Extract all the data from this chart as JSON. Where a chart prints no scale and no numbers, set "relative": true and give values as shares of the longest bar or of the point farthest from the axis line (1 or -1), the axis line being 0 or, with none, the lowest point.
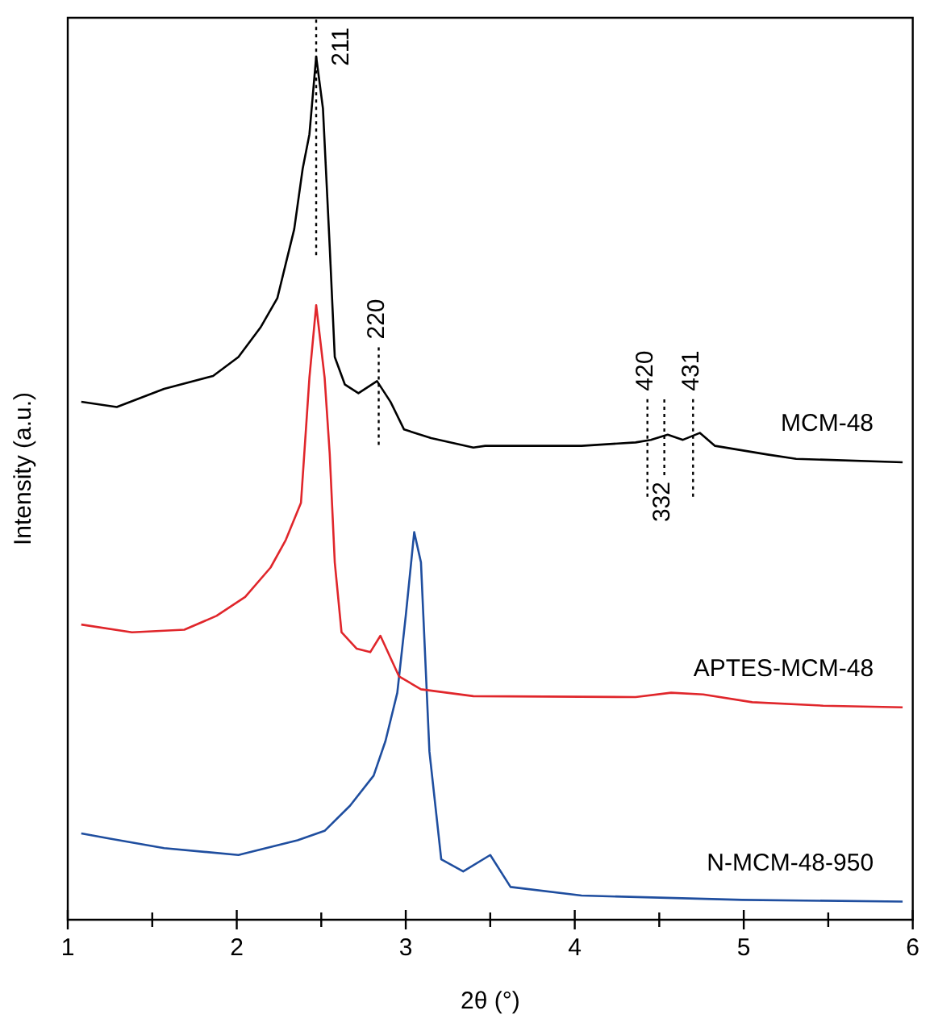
{
  "chart_data": {
    "type": "line",
    "relative": true,
    "xlabel": "2θ (°)",
    "ylabel": "Intensity (a.u.)",
    "xlim": [
      1,
      6
    ],
    "xticks": [
      1,
      {
        "value": 1.5,
        "label": null
      },
      2,
      {
        "value": 2.5,
        "label": null
      },
      3,
      {
        "value": 3.5,
        "label": null
      },
      4,
      {
        "value": 4.5,
        "label": null
      },
      5,
      {
        "value": 5.5,
        "label": null
      },
      6
    ],
    "grid": false,
    "legend": false,
    "marker": "none",
    "line_style": "solid",
    "series": [
      {
        "name": "MCM-48",
        "color": "#000000",
        "x": [
          1.08,
          1.29,
          1.57,
          1.86,
          2.01,
          2.14,
          2.24,
          2.29,
          2.34,
          2.39,
          2.43,
          2.47,
          2.51,
          2.55,
          2.58,
          2.64,
          2.72,
          2.83,
          2.91,
          2.99,
          3.15,
          3.4,
          3.47,
          4.04,
          4.36,
          4.45,
          4.55,
          4.64,
          4.74,
          4.83,
          5.14,
          5.31,
          5.94
        ],
        "values": [
          0.6,
          0.594,
          0.615,
          0.63,
          0.652,
          0.686,
          0.72,
          0.76,
          0.8,
          0.87,
          0.91,
          1.0,
          0.94,
          0.78,
          0.652,
          0.62,
          0.61,
          0.624,
          0.6,
          0.568,
          0.558,
          0.547,
          0.549,
          0.549,
          0.553,
          0.556,
          0.562,
          0.556,
          0.564,
          0.549,
          0.539,
          0.534,
          0.53
        ]
      },
      {
        "name": "APTES-MCM-48",
        "color": "#e0262b",
        "x": [
          1.08,
          1.38,
          1.69,
          1.88,
          2.05,
          2.2,
          2.29,
          2.38,
          2.43,
          2.47,
          2.52,
          2.55,
          2.58,
          2.62,
          2.71,
          2.79,
          2.85,
          2.96,
          3.09,
          3.4,
          4.36,
          4.57,
          4.76,
          5.05,
          5.47,
          5.94
        ],
        "values": [
          0.342,
          0.333,
          0.336,
          0.352,
          0.374,
          0.408,
          0.44,
          0.483,
          0.628,
          0.712,
          0.628,
          0.54,
          0.414,
          0.333,
          0.314,
          0.31,
          0.329,
          0.282,
          0.267,
          0.259,
          0.258,
          0.263,
          0.261,
          0.252,
          0.248,
          0.246
        ]
      },
      {
        "name": "N-MCM-48-950",
        "color": "#1f4e9f",
        "x": [
          1.08,
          1.25,
          1.57,
          2.01,
          2.36,
          2.52,
          2.67,
          2.81,
          2.88,
          2.95,
          3.0,
          3.05,
          3.09,
          3.14,
          3.21,
          3.34,
          3.5,
          3.62,
          4.04,
          4.99,
          5.94
        ],
        "values": [
          0.1,
          0.094,
          0.083,
          0.075,
          0.092,
          0.103,
          0.132,
          0.167,
          0.207,
          0.263,
          0.352,
          0.449,
          0.414,
          0.195,
          0.07,
          0.056,
          0.075,
          0.038,
          0.028,
          0.023,
          0.021
        ]
      }
    ],
    "annotations": [
      {
        "text": "211",
        "x": 2.47,
        "y": 1.0
      },
      {
        "text": "220",
        "x": 2.84,
        "y": 0.62
      },
      {
        "text": "420",
        "x": 4.43,
        "y": 0.56
      },
      {
        "text": "332",
        "x": 4.53,
        "y": 0.56
      },
      {
        "text": "431",
        "x": 4.7,
        "y": 0.56
      }
    ]
  }
}
